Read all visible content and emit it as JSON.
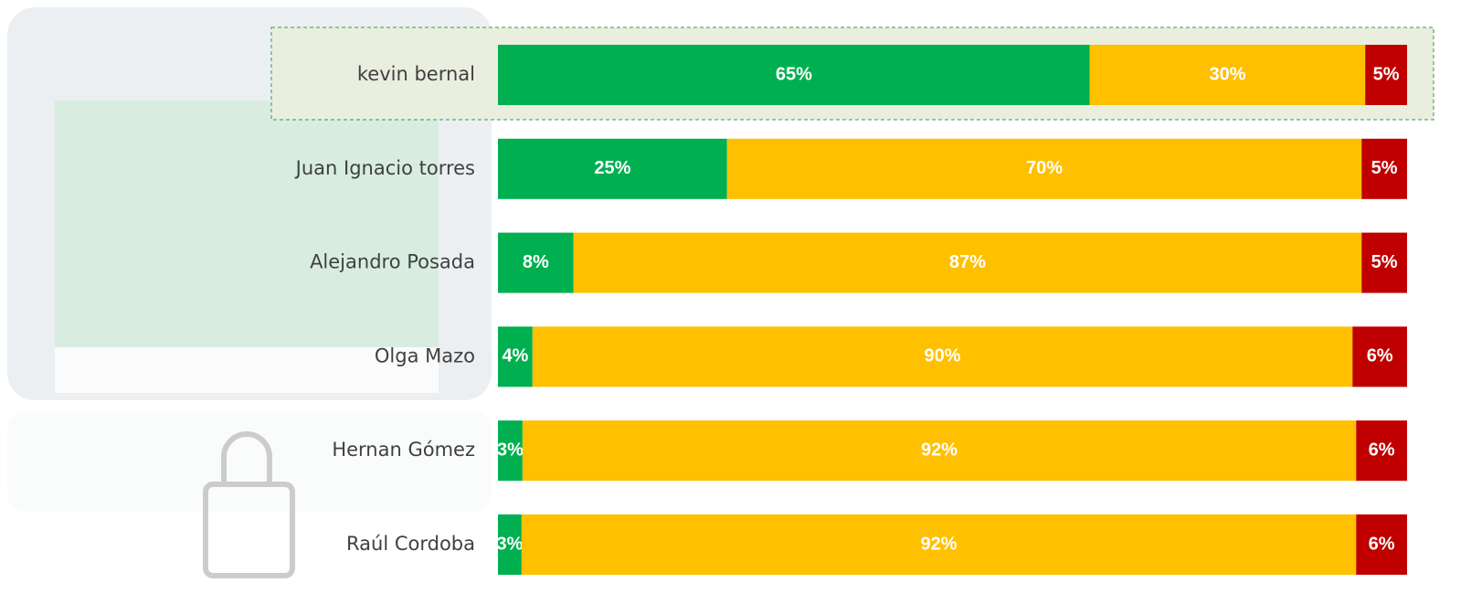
{
  "chart_data": {
    "type": "stacked-barh",
    "categories": [
      "kevin bernal",
      "Juan Ignacio torres",
      "Alejandro Posada",
      "Olga Mazo",
      "Hernan Gómez",
      "Raúl Cordoba"
    ],
    "xlim": [
      0,
      100
    ],
    "series": [
      {
        "color": "#00b050",
        "values": [
          65.1,
          25.2,
          8.3,
          3.8,
          2.7,
          2.6
        ],
        "value_labels": [
          "65%",
          "25%",
          "8%",
          "4%",
          "3%",
          "3%"
        ]
      },
      {
        "color": "#ffc000",
        "values": [
          30.3,
          69.8,
          86.7,
          90.2,
          91.7,
          91.8
        ],
        "value_labels": [
          "30%",
          "70%",
          "87%",
          "90%",
          "92%",
          "92%"
        ]
      },
      {
        "color": "#c00000",
        "values": [
          4.6,
          5.0,
          5.0,
          6.0,
          5.6,
          5.6
        ],
        "value_labels": [
          "5%",
          "5%",
          "5%",
          "6%",
          "6%",
          "6%"
        ]
      }
    ]
  }
}
